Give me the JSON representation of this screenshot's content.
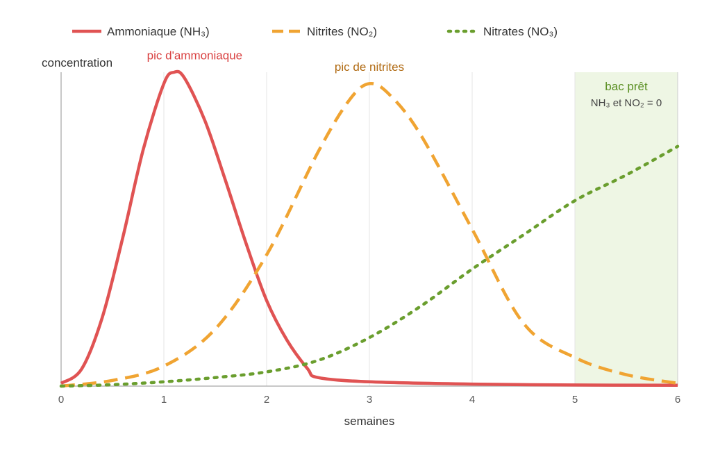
{
  "chart_data": {
    "type": "line",
    "xlabel": "semaines",
    "ylabel": "concentration",
    "xlim": [
      0,
      6
    ],
    "ylim": [
      0,
      1.1
    ],
    "x_ticks": [
      "0",
      "1",
      "2",
      "3",
      "4",
      "5",
      "6"
    ],
    "grid": "vertical",
    "legend_position": "top",
    "series": [
      {
        "name": "Ammoniaque (NH₃)",
        "color": "#e05353",
        "style": "solid",
        "x": [
          0,
          0.2,
          0.4,
          0.6,
          0.8,
          1.0,
          1.1,
          1.2,
          1.4,
          1.6,
          1.8,
          2.0,
          2.2,
          2.4,
          2.5,
          3.0,
          4.0,
          5.0,
          6.0
        ],
        "y": [
          0.01,
          0.06,
          0.24,
          0.52,
          0.83,
          1.06,
          1.1,
          1.08,
          0.93,
          0.72,
          0.5,
          0.3,
          0.16,
          0.06,
          0.03,
          0.015,
          0.007,
          0.004,
          0.003
        ]
      },
      {
        "name": "Nitrites (NO₂)",
        "color": "#f0a432",
        "style": "dashed",
        "x": [
          0,
          0.5,
          1.0,
          1.5,
          2.0,
          2.5,
          2.8,
          3.0,
          3.2,
          3.5,
          4.0,
          4.5,
          5.0,
          5.5,
          6.0
        ],
        "y": [
          0.0,
          0.02,
          0.07,
          0.2,
          0.46,
          0.82,
          1.0,
          1.06,
          1.02,
          0.88,
          0.55,
          0.22,
          0.1,
          0.04,
          0.01
        ]
      },
      {
        "name": "Nitrates (NO₃)",
        "color": "#6a9e2e",
        "style": "dotted",
        "x": [
          0,
          0.5,
          1.0,
          1.5,
          2.0,
          2.5,
          3.0,
          3.5,
          4.0,
          4.5,
          5.0,
          5.5,
          6.0
        ],
        "y": [
          0.0,
          0.005,
          0.015,
          0.03,
          0.05,
          0.09,
          0.17,
          0.28,
          0.41,
          0.53,
          0.65,
          0.74,
          0.84
        ]
      }
    ],
    "annotations": [
      {
        "text": "pic d'ammoniaque",
        "x": 1.3,
        "y": 1.16,
        "color": "#d94141"
      },
      {
        "text": "pic de nitrites",
        "x": 3.0,
        "y": 1.12,
        "color": "#b06a12"
      }
    ],
    "highlight_region": {
      "x_from": 5,
      "x_to": 6,
      "color": "#eef6e4",
      "title": "bac prêt",
      "title_color": "#5a8f22",
      "subtitle": "NH₃ et NO₂ = 0"
    }
  }
}
